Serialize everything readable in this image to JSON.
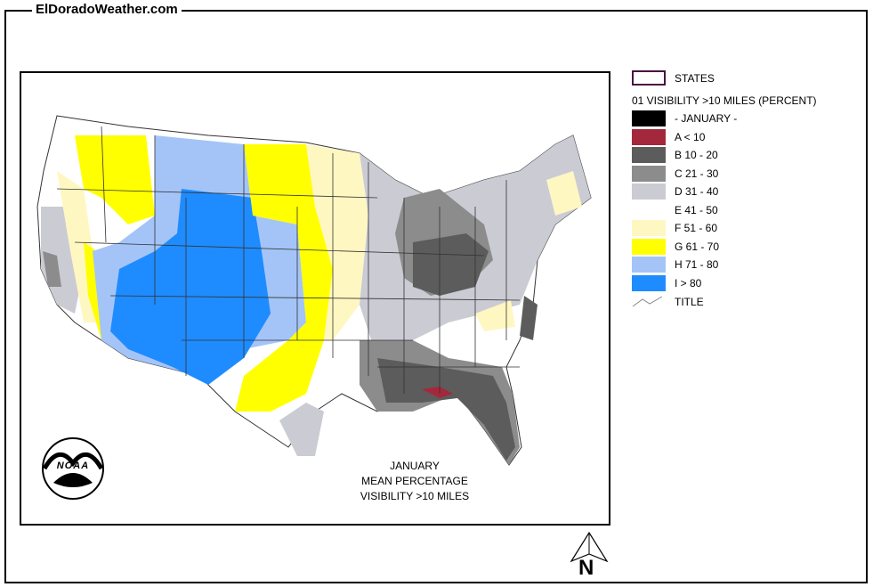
{
  "site_title": "ElDoradoWeather.com",
  "legend": {
    "states_label": "STATES",
    "heading": "01 VISIBILITY >10 MILES (PERCENT)",
    "items": [
      {
        "label": "- JANUARY -",
        "color": "#000000"
      },
      {
        "label": "A < 10",
        "color": "#a3283c"
      },
      {
        "label": "B 10 - 20",
        "color": "#5c5c5c"
      },
      {
        "label": "C 21 - 30",
        "color": "#8c8c8c"
      },
      {
        "label": "D 31 - 40",
        "color": "#cbcbd4"
      },
      {
        "label": "E 41 - 50",
        "color": "#ffffff"
      },
      {
        "label": "F 51 - 60",
        "color": "#fff7c2"
      },
      {
        "label": "G 61 - 70",
        "color": "#ffff00"
      },
      {
        "label": "H 71 - 80",
        "color": "#a4c4f8"
      },
      {
        "label": "I > 80",
        "color": "#1e8cff"
      }
    ],
    "title_label": "TITLE"
  },
  "caption": {
    "line1": "JANUARY",
    "line2": "MEAN PERCENTAGE",
    "line3": "VISIBILITY >10 MILES"
  },
  "north_arrow": {
    "letter": "N",
    "icon": "north-arrow-icon"
  },
  "logo": {
    "text": "NOAA",
    "icon": "noaa-logo-icon"
  }
}
